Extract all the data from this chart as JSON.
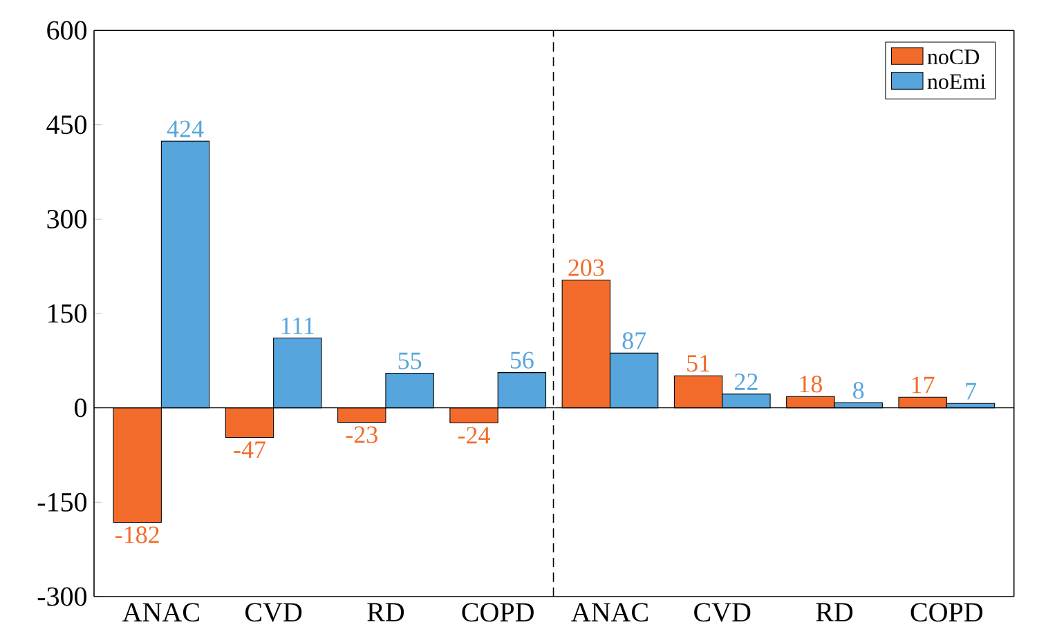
{
  "chart_data": [
    {
      "type": "bar",
      "categories": [
        "ANAC",
        "CVD",
        "RD",
        "COPD"
      ],
      "series": [
        {
          "color": "#f26b2a",
          "values": [
            -182,
            -47,
            -23,
            -24
          ]
        },
        {
          "color": "#56a5dc",
          "values": [
            424,
            111,
            55,
            56
          ]
        }
      ],
      "ylim": [
        -300,
        600
      ],
      "yticks": [
        -300,
        -150,
        0,
        150,
        300,
        450,
        600
      ],
      "data_labels": true
    },
    {
      "type": "bar",
      "categories": [
        "ANAC",
        "CVD",
        "RD",
        "COPD"
      ],
      "series": [
        {
          "name": "noCD",
          "color": "#f26b2a",
          "values": [
            203,
            51,
            18,
            17
          ]
        },
        {
          "name": "noEmi",
          "color": "#56a5dc",
          "values": [
            87,
            22,
            8,
            7
          ]
        }
      ],
      "ylim": [
        -300,
        600
      ],
      "yticks": [
        -300,
        -150,
        0,
        150,
        300,
        450,
        600
      ],
      "tick_labels": "x",
      "data_labels": true,
      "legend": "top right"
    }
  ]
}
